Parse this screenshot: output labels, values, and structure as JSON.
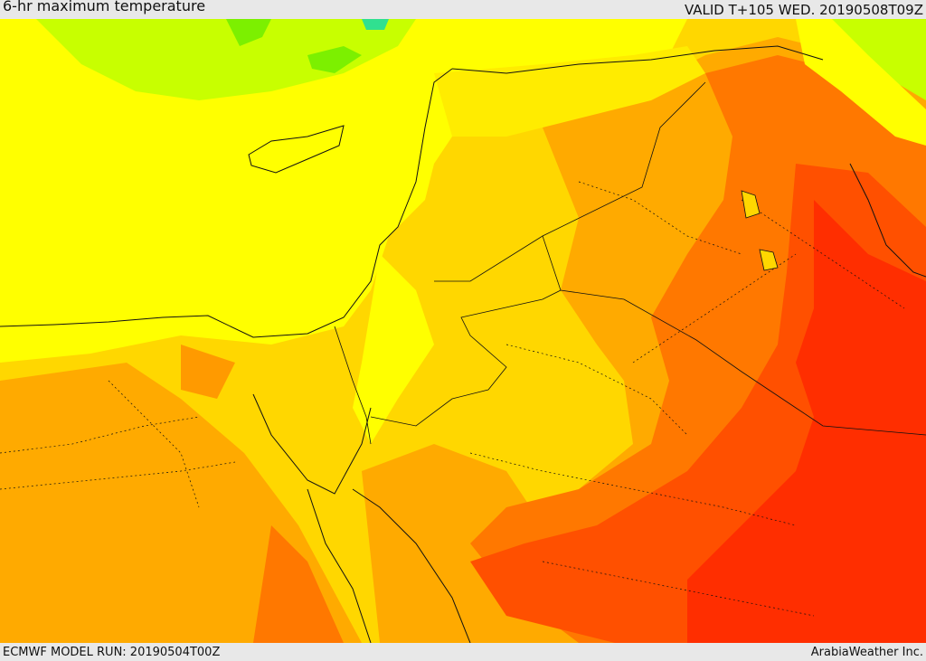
{
  "header": {
    "title": "6-hr maximum temperature",
    "valid": "VALID T+105 WED. 20190508T09Z"
  },
  "footer": {
    "model_run": "ECMWF MODEL RUN: 20190504T00Z",
    "credit": "ArabiaWeather Inc."
  },
  "colors": {
    "green": "#7cf000",
    "yellow_green": "#c8ff00",
    "yellow": "#ffff00",
    "gold": "#ffd700",
    "orange": "#ffaa00",
    "dark_orange": "#ff7800",
    "red_orange": "#ff5000",
    "red": "#ff2e00",
    "cyan": "#30e090",
    "border": "#111111"
  }
}
